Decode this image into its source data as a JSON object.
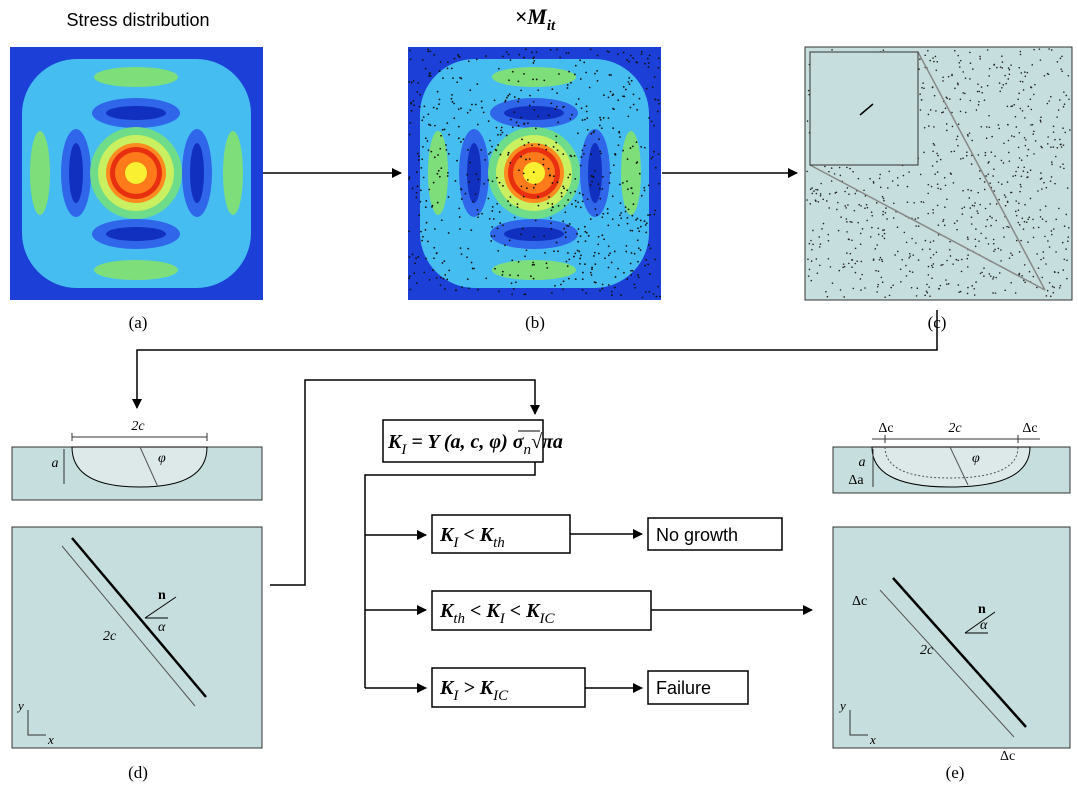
{
  "panels": {
    "a": {
      "title": "Stress distribution",
      "caption": "(a)"
    },
    "b": {
      "title": [
        {
          "t": "×M"
        },
        {
          "s": "it"
        }
      ],
      "caption": "(b)"
    },
    "c": {
      "caption": "(c)"
    },
    "d": {
      "caption": "(d)",
      "width_label": "2c",
      "depth_label": "a",
      "angle_label": "φ",
      "crack_length_label": "2c",
      "normal_label": "n",
      "alpha_label": "α",
      "axis_y": "y",
      "axis_x": "x"
    },
    "e": {
      "caption": "(e)",
      "width_label": "2c",
      "depth_label": "a",
      "angle_label": "φ",
      "crack_length_label": "2c",
      "normal_label": "n",
      "alpha_label": "α",
      "axis_y": "y",
      "axis_x": "x",
      "delta_c": "Δc",
      "delta_a": "Δa"
    }
  },
  "flow": {
    "sif": [
      {
        "t": "K"
      },
      {
        "s": "I"
      },
      {
        "t": " = Y (a, c, φ) σ"
      },
      {
        "s": "n"
      },
      {
        "t": "√πa"
      }
    ],
    "branches": [
      {
        "condition": [
          {
            "t": "K"
          },
          {
            "s": "I"
          },
          {
            "t": " < K"
          },
          {
            "s": "th"
          }
        ],
        "outcome": "No growth"
      },
      {
        "condition": [
          {
            "t": "K"
          },
          {
            "s": "th"
          },
          {
            "t": " < K"
          },
          {
            "s": "I"
          },
          {
            "t": " < K"
          },
          {
            "s": "IC"
          }
        ]
      },
      {
        "condition": [
          {
            "t": "K"
          },
          {
            "s": "I"
          },
          {
            "t": " > K"
          },
          {
            "s": "IC"
          }
        ],
        "outcome": "Failure"
      }
    ]
  }
}
